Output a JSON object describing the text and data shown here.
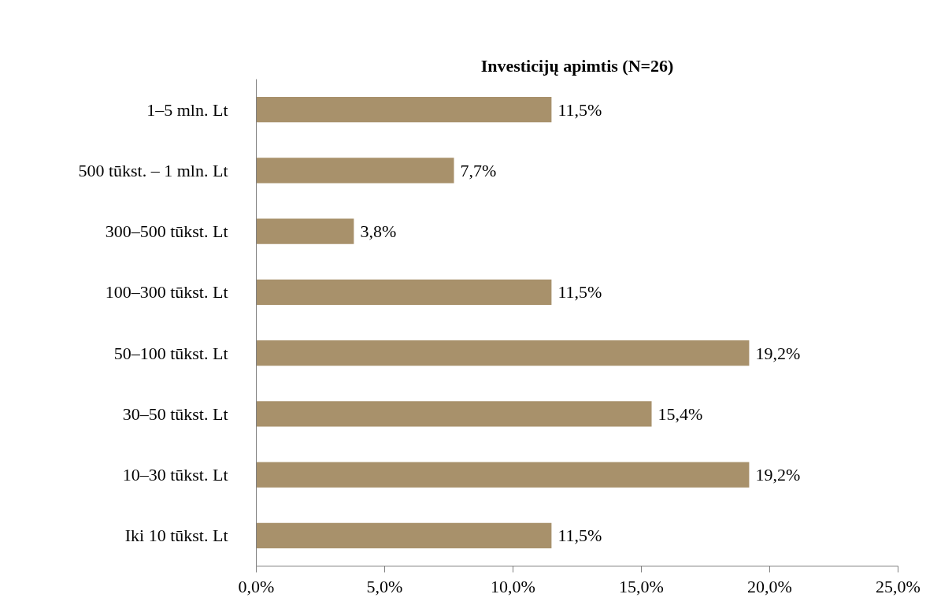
{
  "chart_data": {
    "type": "bar",
    "orientation": "horizontal",
    "title": "Investicijų apimtis (N=26)",
    "categories": [
      "1–5 mln. Lt",
      "500 tūkst. – 1 mln. Lt",
      "300–500 tūkst. Lt",
      "100–300 tūkst. Lt",
      "50–100 tūkst. Lt",
      "30–50 tūkst. Lt",
      "10–30 tūkst. Lt",
      "Iki 10 tūkst. Lt"
    ],
    "values": [
      11.5,
      7.7,
      3.8,
      11.5,
      19.2,
      15.4,
      19.2,
      11.5
    ],
    "value_labels": [
      "11,5%",
      "7,7%",
      "3,8%",
      "11,5%",
      "19,2%",
      "15,4%",
      "19,2%",
      "11,5%"
    ],
    "color": "#a8916b",
    "xlim": [
      0,
      25
    ],
    "xticks": [
      {
        "value": 0,
        "label": "0,0%"
      },
      {
        "value": 5,
        "label": "5,0%"
      },
      {
        "value": 10,
        "label": "10,0%"
      },
      {
        "value": 15,
        "label": "15,0%"
      },
      {
        "value": 20,
        "label": "20,0%"
      },
      {
        "value": 25,
        "label": "25,0%"
      }
    ],
    "grid": false
  }
}
